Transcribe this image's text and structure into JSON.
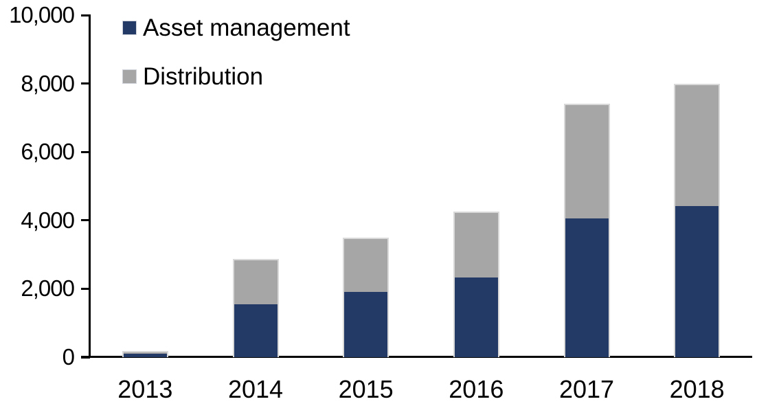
{
  "chart_data": {
    "type": "bar",
    "stacked": true,
    "title": "",
    "xlabel": "",
    "ylabel": "",
    "categories": [
      "2013",
      "2014",
      "2015",
      "2016",
      "2017",
      "2018"
    ],
    "series": [
      {
        "name": "Asset management",
        "color": "#223a65",
        "values": [
          100,
          1550,
          1900,
          2325,
          4050,
          4425
        ]
      },
      {
        "name": "Distribution",
        "color": "#a6a6a6",
        "values": [
          90,
          1325,
          1600,
          1925,
          3350,
          3575
        ]
      }
    ],
    "stack_totals": [
      190,
      2875,
      3500,
      4250,
      7400,
      8000
    ],
    "ylim": [
      0,
      10000
    ],
    "ytick_interval": 2000,
    "ytick_labels": [
      "0",
      "2,000",
      "4,000",
      "6,000",
      "8,000",
      "10,000"
    ],
    "grid": false,
    "legend_position": "top-left",
    "axis_color": "#000000",
    "bar_border_color": "#d9d9d9"
  }
}
